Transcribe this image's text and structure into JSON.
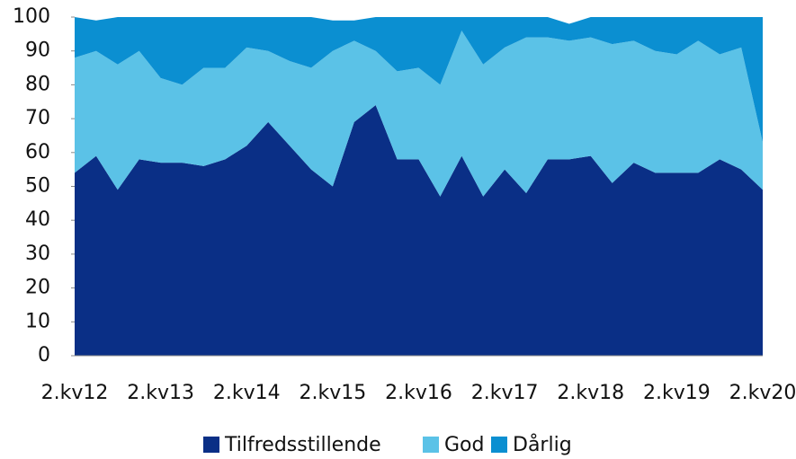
{
  "chart_data": {
    "type": "stacked_area",
    "categories": [
      "2.kv12",
      null,
      null,
      null,
      "2.kv13",
      null,
      null,
      null,
      "2.kv14",
      null,
      null,
      null,
      "2.kv15",
      null,
      null,
      null,
      "2.kv16",
      null,
      null,
      null,
      "2.kv17",
      null,
      null,
      null,
      "2.kv18",
      null,
      null,
      null,
      "2.kv19",
      null,
      null,
      null,
      "2.kv20"
    ],
    "series": [
      {
        "name": "Tilfredsstillende",
        "color": "#0a2f86",
        "values": [
          54,
          59,
          49,
          58,
          57,
          57,
          56,
          58,
          62,
          69,
          62,
          55,
          50,
          69,
          74,
          58,
          58,
          47,
          59,
          47,
          55,
          48,
          58,
          58,
          59,
          51,
          57,
          54,
          54,
          54,
          58,
          55,
          49
        ]
      },
      {
        "name": "God",
        "color": "#5bc2e7",
        "values": [
          34,
          31,
          37,
          32,
          25,
          23,
          29,
          27,
          29,
          21,
          25,
          30,
          40,
          24,
          16,
          26,
          27,
          33,
          37,
          39,
          36,
          46,
          36,
          35,
          35,
          41,
          36,
          36,
          35,
          39,
          31,
          36,
          14
        ]
      },
      {
        "name": "Dårlig",
        "color": "#0b8fd1",
        "values": [
          12,
          9,
          14,
          10,
          18,
          20,
          15,
          15,
          9,
          10,
          13,
          15,
          9,
          6,
          10,
          16,
          15,
          20,
          4,
          14,
          9,
          6,
          6,
          5,
          6,
          8,
          7,
          10,
          11,
          7,
          11,
          9,
          37
        ]
      }
    ],
    "ylim": [
      0,
      100
    ],
    "yticks": [
      0,
      10,
      20,
      30,
      40,
      50,
      60,
      70,
      80,
      90,
      100
    ],
    "legend": "bottom"
  }
}
